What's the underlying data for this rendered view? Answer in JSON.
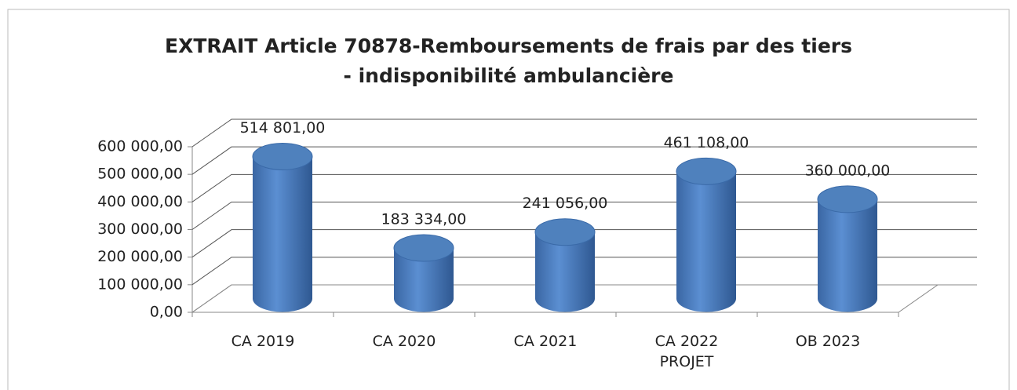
{
  "chart_data": {
    "type": "bar3d",
    "title": "EXTRAIT Article 70878-Remboursements de frais par des tiers\n - indisponibilité ambulancière",
    "categories": [
      "CA 2019",
      "CA 2020",
      "CA 2021",
      "CA 2022\nPROJET",
      "OB 2023"
    ],
    "values": [
      514801,
      183334,
      241056,
      461108,
      360000
    ],
    "value_labels": [
      "514 801,00",
      "183 334,00",
      "241 056,00",
      "461 108,00",
      "360 000,00"
    ],
    "color": "#4f81bd",
    "ylim": [
      0,
      600000
    ],
    "yticks": [
      {
        "value": 0,
        "label": "0,00"
      },
      {
        "value": 100000,
        "label": "100 000,00"
      },
      {
        "value": 200000,
        "label": "200 000,00"
      },
      {
        "value": 300000,
        "label": "300 000,00"
      },
      {
        "value": 400000,
        "label": "400 000,00"
      },
      {
        "value": 500000,
        "label": "500 000,00"
      },
      {
        "value": 600000,
        "label": "600 000,00"
      }
    ],
    "grid": true
  }
}
